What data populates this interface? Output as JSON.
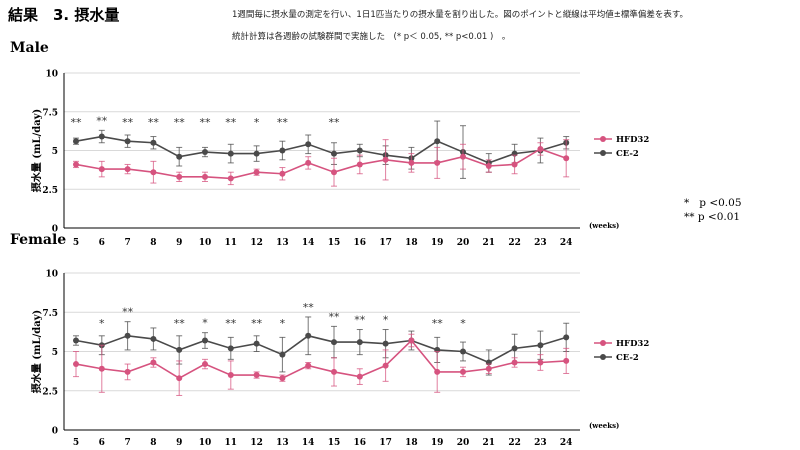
{
  "header": {
    "title": "結果　3. 摂水量",
    "note_line1": "1週間毎に摂水量の測定を行い、1日1匹当たりの摂水量を割り出した。図のポイントと縦線は平均値±標準偏差を表す。",
    "note_line2": "統計計算は各週齢の試験群間で実施した　(*  p＜ 0.05, ** p<0.01 )　。"
  },
  "sections": {
    "male": "Male",
    "female": "Female"
  },
  "significance_legend": {
    "single": "*   p <0.05",
    "double": "** p <0.01"
  },
  "colors": {
    "HFD32": "#d6537f",
    "CE-2": "#4a4a4a",
    "grid": "#d9d9d9"
  },
  "chart_data": [
    {
      "id": "male",
      "type": "line",
      "x": [
        "5",
        "6",
        "7",
        "8",
        "9",
        "10",
        "11",
        "12",
        "13",
        "14",
        "15",
        "16",
        "17",
        "18",
        "19",
        "20",
        "21",
        "22",
        "23",
        "24"
      ],
      "xlabel": "(weeks)",
      "ylabel": "摂水量 (mL/day)",
      "ylim": [
        0,
        10
      ],
      "yticks": [
        "0",
        "2.5",
        "5",
        "7.5",
        "10"
      ],
      "grid": "horizontal",
      "legend_position": "right",
      "series": [
        {
          "name": "HFD32",
          "values": [
            4.1,
            3.8,
            3.8,
            3.6,
            3.3,
            3.3,
            3.2,
            3.6,
            3.5,
            4.2,
            3.6,
            4.1,
            4.4,
            4.2,
            4.2,
            4.6,
            4.0,
            4.1,
            5.1,
            4.5
          ],
          "errors": [
            0.2,
            0.5,
            0.3,
            0.7,
            0.3,
            0.3,
            0.4,
            0.2,
            0.4,
            0.4,
            0.9,
            0.6,
            1.3,
            0.6,
            1.0,
            0.8,
            0.4,
            0.6,
            0.4,
            1.2
          ]
        },
        {
          "name": "CE-2",
          "values": [
            5.6,
            5.9,
            5.6,
            5.5,
            4.6,
            4.9,
            4.8,
            4.8,
            5.0,
            5.4,
            4.8,
            5.0,
            4.7,
            4.5,
            5.6,
            4.9,
            4.2,
            4.8,
            5.0,
            5.5
          ],
          "errors": [
            0.2,
            0.4,
            0.4,
            0.4,
            0.6,
            0.3,
            0.6,
            0.5,
            0.6,
            0.6,
            0.7,
            0.4,
            0.6,
            0.7,
            1.3,
            1.7,
            0.6,
            0.6,
            0.8,
            0.4
          ]
        }
      ],
      "annotations": [
        "**",
        "**",
        "**",
        "**",
        "**",
        "**",
        "**",
        "*",
        "**",
        "",
        "**",
        "",
        "",
        "",
        "",
        "",
        "",
        "",
        "",
        ""
      ]
    },
    {
      "id": "female",
      "type": "line",
      "x": [
        "5",
        "6",
        "7",
        "8",
        "9",
        "10",
        "11",
        "12",
        "13",
        "14",
        "15",
        "16",
        "17",
        "18",
        "19",
        "20",
        "21",
        "22",
        "23",
        "24"
      ],
      "xlabel": "(weeks)",
      "ylabel": "摂水量 (mL/day)",
      "ylim": [
        0,
        10
      ],
      "yticks": [
        "0",
        "2.5",
        "5",
        "7.5",
        "10"
      ],
      "grid": "horizontal",
      "legend_position": "right",
      "series": [
        {
          "name": "HFD32",
          "values": [
            4.2,
            3.9,
            3.7,
            4.3,
            3.3,
            4.2,
            3.5,
            3.5,
            3.3,
            4.1,
            3.7,
            3.4,
            4.1,
            5.7,
            3.7,
            3.7,
            3.9,
            4.3,
            4.3,
            4.4
          ],
          "errors": [
            0.8,
            1.5,
            0.5,
            0.3,
            1.1,
            0.3,
            0.9,
            0.2,
            0.2,
            0.2,
            0.9,
            0.5,
            1.0,
            0.4,
            1.3,
            0.3,
            0.3,
            0.3,
            0.5,
            0.8
          ]
        },
        {
          "name": "CE-2",
          "values": [
            5.7,
            5.4,
            6.0,
            5.8,
            5.1,
            5.7,
            5.2,
            5.5,
            4.8,
            6.0,
            5.6,
            5.6,
            5.5,
            5.7,
            5.1,
            5.0,
            4.3,
            5.2,
            5.4,
            5.9
          ],
          "errors": [
            0.3,
            0.6,
            0.9,
            0.7,
            0.9,
            0.5,
            0.7,
            0.5,
            1.1,
            1.2,
            1.0,
            0.8,
            0.9,
            0.6,
            0.8,
            0.6,
            0.8,
            0.9,
            0.9,
            0.9
          ]
        }
      ],
      "annotations": [
        "",
        "*",
        "**",
        "",
        "**",
        "*",
        "**",
        "**",
        "*",
        "**",
        "**",
        "**",
        "*",
        "",
        "**",
        "*",
        "",
        "",
        "",
        ""
      ]
    }
  ]
}
